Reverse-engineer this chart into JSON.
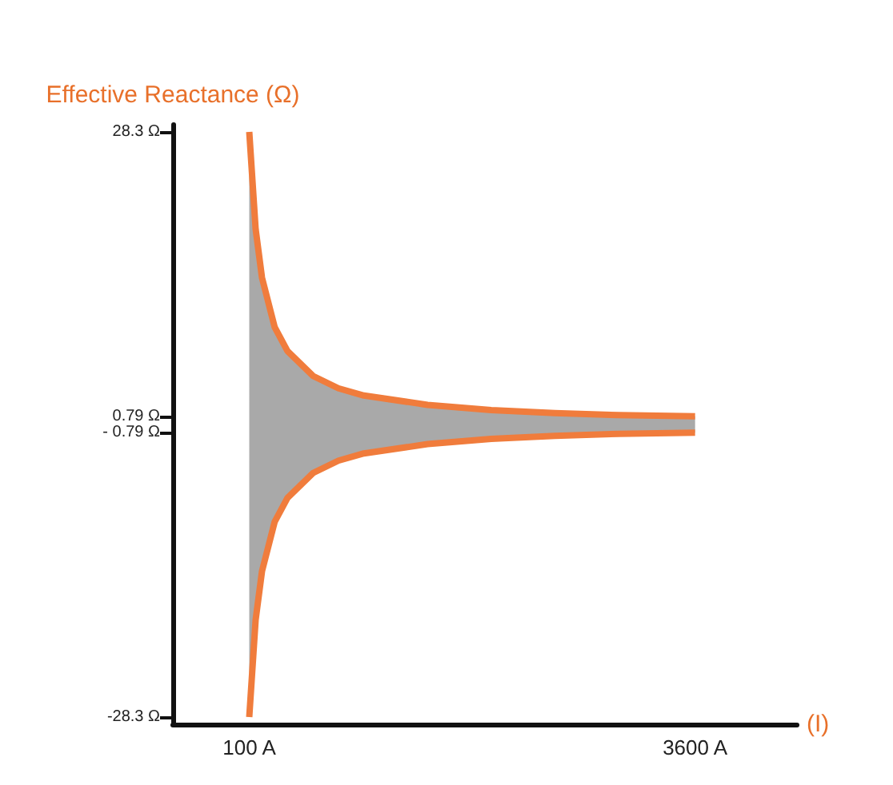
{
  "chart_data": {
    "type": "area",
    "ylabel": "Effective Reactance (Ω)",
    "xlabel": "(I)",
    "x": [
      100,
      150,
      200,
      300,
      400,
      600,
      800,
      1000,
      1500,
      2000,
      2500,
      3000,
      3600
    ],
    "series": [
      {
        "color": "#f07c3c",
        "values": [
          28.3,
          18.9,
          14.2,
          9.4,
          7.1,
          4.7,
          3.5,
          2.8,
          1.9,
          1.4,
          1.1,
          0.9,
          0.79
        ]
      },
      {
        "color": "#f07c3c",
        "values": [
          -28.3,
          -18.9,
          -14.2,
          -9.4,
          -7.1,
          -4.7,
          -3.5,
          -2.8,
          -1.9,
          -1.4,
          -1.1,
          -0.9,
          -0.79
        ]
      }
    ],
    "xlim": [
      -500,
      4400
    ],
    "xticks": [
      {
        "value": 100,
        "label": "100 A"
      },
      {
        "value": 3600,
        "label": "3600 A"
      }
    ],
    "ylim": [
      -29,
      29
    ],
    "yticks": [
      {
        "value": 28.3,
        "label": "28.3 Ω"
      },
      {
        "value": 0.79,
        "label": "0.79 Ω"
      },
      {
        "value": -0.79,
        "label": "- 0.79 Ω"
      },
      {
        "value": -28.3,
        "label": "-28.3 Ω"
      }
    ],
    "grid": false
  }
}
